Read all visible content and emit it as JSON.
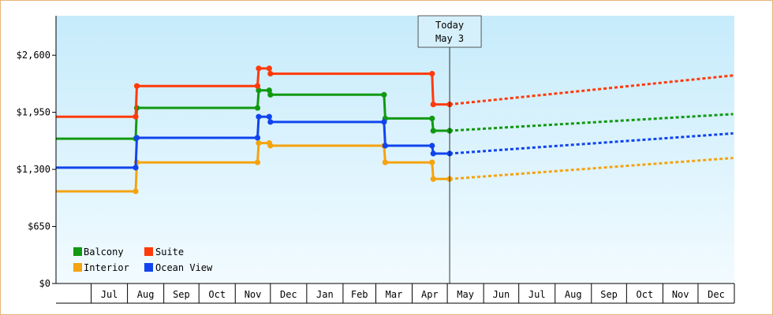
{
  "chart_data": {
    "type": "line",
    "step": true,
    "x_axis": {
      "months": [
        "Jul",
        "Aug",
        "Sep",
        "Oct",
        "Nov",
        "Dec",
        "Jan",
        "Feb",
        "Mar",
        "Apr",
        "May",
        "Jun",
        "Jul",
        "Aug",
        "Sep",
        "Oct",
        "Nov",
        "Dec"
      ],
      "start": "2024-06-01",
      "end": "2025-12-31"
    },
    "y_axis": {
      "ticks": [
        0,
        650,
        1300,
        1950,
        2600
      ],
      "tick_labels": [
        "$0",
        "$650",
        "$1,300",
        "$1,950",
        "$2,600"
      ],
      "ylim": [
        0,
        3050
      ]
    },
    "today": {
      "line1": "Today",
      "line2": "May 3",
      "date": "2025-05-03"
    },
    "grid": false,
    "legend_position": "bottom-left",
    "series": [
      {
        "name": "Balcony",
        "color": "#119911",
        "points": [
          [
            "2024-06-01",
            1650
          ],
          [
            "2024-08-08",
            1650
          ],
          [
            "2024-08-09",
            2000
          ],
          [
            "2024-11-20",
            2000
          ],
          [
            "2024-11-21",
            2200
          ],
          [
            "2024-11-30",
            2200
          ],
          [
            "2024-12-01",
            2150
          ],
          [
            "2025-03-08",
            2150
          ],
          [
            "2025-03-09",
            1880
          ],
          [
            "2025-04-18",
            1880
          ],
          [
            "2025-04-19",
            1740
          ],
          [
            "2025-05-03",
            1740
          ]
        ],
        "forecast": [
          [
            "2025-05-03",
            1740
          ],
          [
            "2025-12-31",
            1930
          ]
        ]
      },
      {
        "name": "Interior",
        "color": "#f5a30f",
        "points": [
          [
            "2024-06-01",
            1050
          ],
          [
            "2024-08-08",
            1050
          ],
          [
            "2024-08-09",
            1380
          ],
          [
            "2024-11-20",
            1380
          ],
          [
            "2024-11-21",
            1600
          ],
          [
            "2024-11-30",
            1600
          ],
          [
            "2024-12-01",
            1570
          ],
          [
            "2025-03-08",
            1570
          ],
          [
            "2025-03-09",
            1380
          ],
          [
            "2025-04-18",
            1380
          ],
          [
            "2025-04-19",
            1190
          ],
          [
            "2025-05-03",
            1190
          ]
        ],
        "forecast": [
          [
            "2025-05-03",
            1190
          ],
          [
            "2025-12-31",
            1430
          ]
        ]
      },
      {
        "name": "Suite",
        "color": "#ff3a0a",
        "points": [
          [
            "2024-06-01",
            1900
          ],
          [
            "2024-08-08",
            1900
          ],
          [
            "2024-08-09",
            2250
          ],
          [
            "2024-11-20",
            2250
          ],
          [
            "2024-11-21",
            2450
          ],
          [
            "2024-11-30",
            2450
          ],
          [
            "2024-12-01",
            2390
          ],
          [
            "2025-04-18",
            2390
          ],
          [
            "2025-04-19",
            2040
          ],
          [
            "2025-05-03",
            2040
          ]
        ],
        "forecast": [
          [
            "2025-05-03",
            2040
          ],
          [
            "2025-12-31",
            2370
          ]
        ]
      },
      {
        "name": "Ocean View",
        "color": "#1144ee",
        "points": [
          [
            "2024-06-01",
            1320
          ],
          [
            "2024-08-08",
            1320
          ],
          [
            "2024-08-09",
            1660
          ],
          [
            "2024-11-20",
            1660
          ],
          [
            "2024-11-21",
            1900
          ],
          [
            "2024-11-30",
            1900
          ],
          [
            "2024-12-01",
            1840
          ],
          [
            "2025-03-08",
            1840
          ],
          [
            "2025-03-09",
            1570
          ],
          [
            "2025-04-18",
            1570
          ],
          [
            "2025-04-19",
            1480
          ],
          [
            "2025-05-03",
            1480
          ]
        ],
        "forecast": [
          [
            "2025-05-03",
            1480
          ],
          [
            "2025-12-31",
            1710
          ]
        ]
      }
    ]
  }
}
